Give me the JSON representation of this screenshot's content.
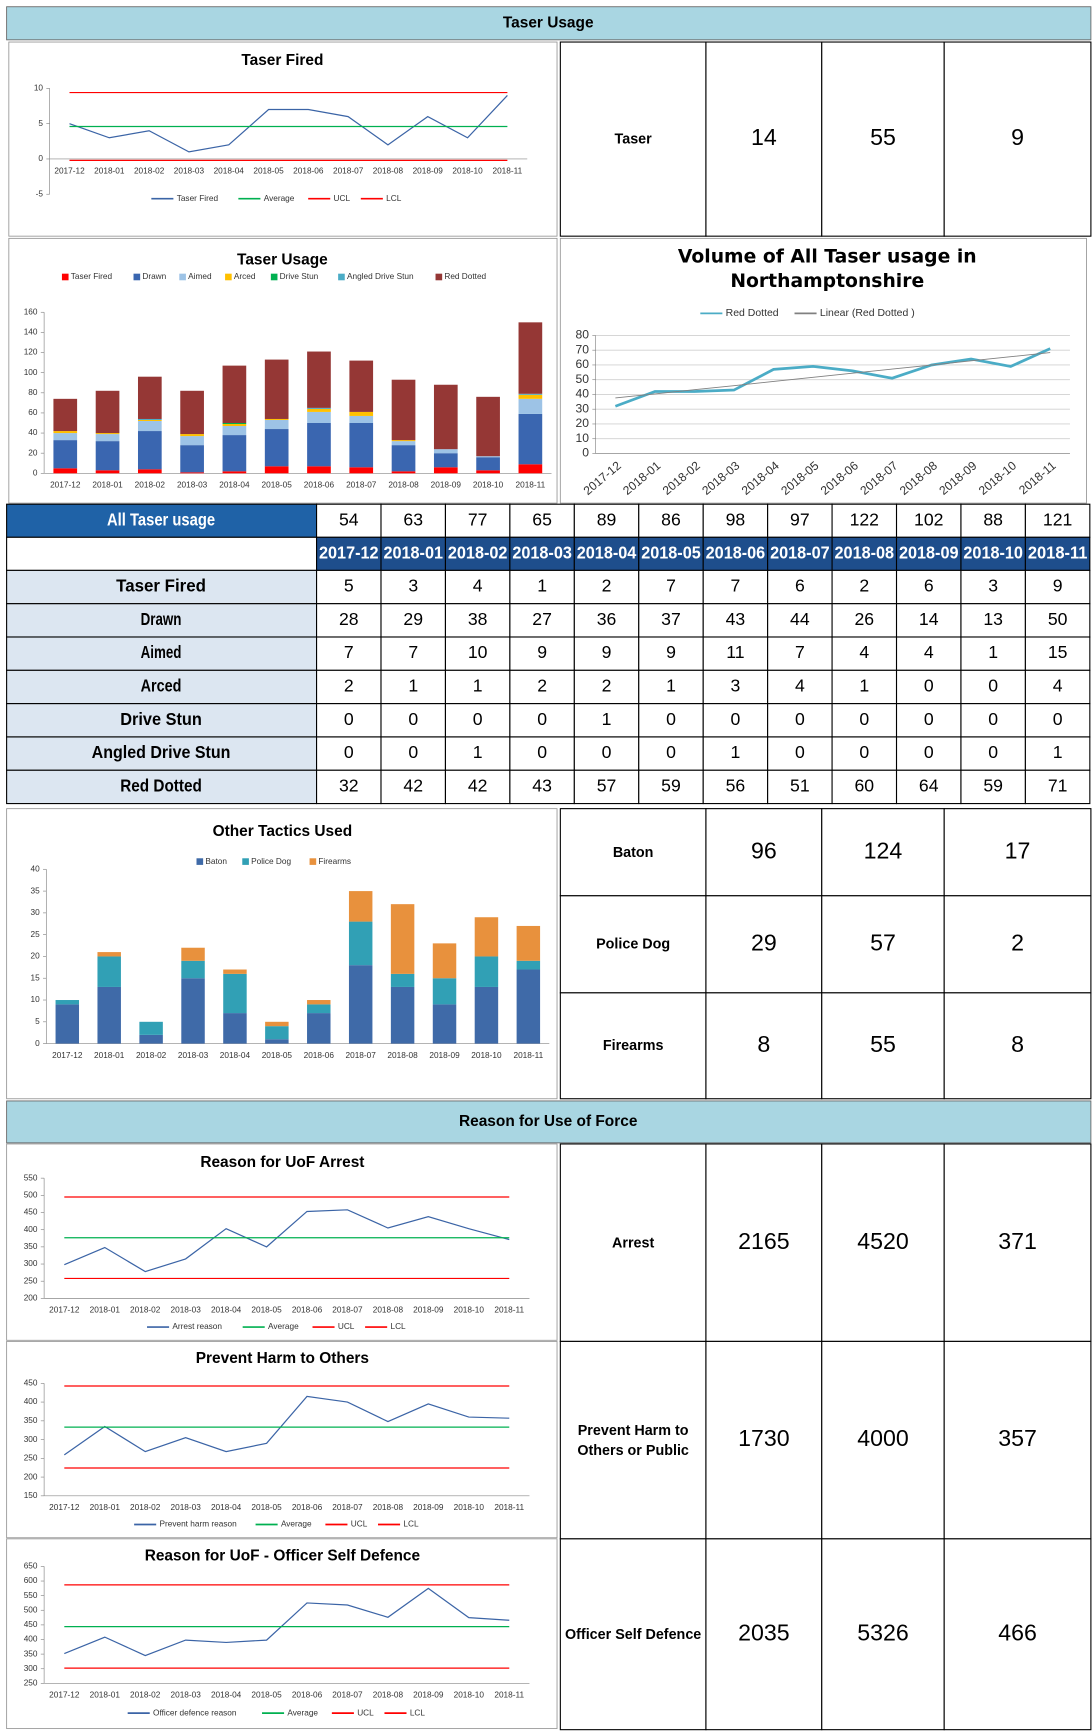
{
  "sections": [
    "Taser Usage",
    "Reason for Use of Force"
  ],
  "chart_data": [
    {
      "type": "line",
      "title": "Taser Fired",
      "categories": [
        "2017-12",
        "2018-01",
        "2018-02",
        "2018-03",
        "2018-04",
        "2018-05",
        "2018-06",
        "2018-07",
        "2018-08",
        "2018-09",
        "2018-10",
        "2018-11"
      ],
      "series": [
        {
          "name": "Taser Fired",
          "color": "#3b64a6",
          "values": [
            5,
            3,
            4,
            1,
            2,
            7,
            7,
            6,
            2,
            6,
            3,
            9
          ]
        },
        {
          "name": "Average",
          "color": "#00b050",
          "values": [
            4.6,
            4.6,
            4.6,
            4.6,
            4.6,
            4.6,
            4.6,
            4.6,
            4.6,
            4.6,
            4.6,
            4.6
          ]
        },
        {
          "name": "UCL",
          "color": "#ff0000",
          "values": [
            9.4,
            9.4,
            9.4,
            9.4,
            9.4,
            9.4,
            9.4,
            9.4,
            9.4,
            9.4,
            9.4,
            9.4
          ]
        },
        {
          "name": "LCL",
          "color": "#ff0000",
          "values": [
            -0.2,
            -0.2,
            -0.2,
            -0.2,
            -0.2,
            -0.2,
            -0.2,
            -0.2,
            -0.2,
            -0.2,
            -0.2,
            -0.2
          ]
        }
      ],
      "ylim": [
        -5,
        10
      ],
      "yticks": [
        -5,
        0,
        5,
        10
      ],
      "legend": "bottom"
    },
    {
      "type": "bar",
      "stacked": true,
      "title": "Taser Usage",
      "categories": [
        "2017-12",
        "2018-01",
        "2018-02",
        "2018-03",
        "2018-04",
        "2018-05",
        "2018-06",
        "2018-07",
        "2018-08",
        "2018-09",
        "2018-10",
        "2018-11"
      ],
      "series": [
        {
          "name": "Taser Fired",
          "color": "#ff0000",
          "values": [
            5,
            3,
            4,
            1,
            2,
            7,
            7,
            6,
            2,
            6,
            3,
            9
          ]
        },
        {
          "name": "Drawn",
          "color": "#3a66b0",
          "values": [
            28,
            29,
            38,
            27,
            36,
            37,
            43,
            44,
            26,
            14,
            13,
            50
          ]
        },
        {
          "name": "Aimed",
          "color": "#9dc3e6",
          "values": [
            7,
            7,
            10,
            9,
            9,
            9,
            11,
            7,
            4,
            4,
            1,
            15
          ]
        },
        {
          "name": "Arced",
          "color": "#ffc000",
          "values": [
            2,
            1,
            1,
            2,
            2,
            1,
            3,
            4,
            1,
            0,
            0,
            4
          ]
        },
        {
          "name": "Drive Stun",
          "color": "#00b050",
          "values": [
            0,
            0,
            0,
            0,
            1,
            0,
            0,
            0,
            0,
            0,
            0,
            0
          ]
        },
        {
          "name": "Angled Drive Stun",
          "color": "#4bacc6",
          "values": [
            0,
            0,
            1,
            0,
            0,
            0,
            1,
            0,
            0,
            0,
            0,
            1
          ]
        },
        {
          "name": "Red Dotted",
          "color": "#953735",
          "values": [
            32,
            42,
            42,
            43,
            57,
            59,
            56,
            51,
            60,
            64,
            59,
            71
          ]
        }
      ],
      "ylim": [
        0,
        160
      ],
      "yticks": [
        0,
        20,
        40,
        60,
        80,
        100,
        120,
        140,
        160
      ],
      "legend": "top"
    },
    {
      "type": "line",
      "title": "Volume of All Taser usage in Northamptonshire",
      "categories": [
        "2017-12",
        "2018-01",
        "2018-02",
        "2018-03",
        "2018-04",
        "2018-05",
        "2018-06",
        "2018-07",
        "2018-08",
        "2018-09",
        "2018-10",
        "2018-11"
      ],
      "series": [
        {
          "name": "Red Dotted",
          "color": "#4bacc6",
          "values": [
            32,
            42,
            42,
            43,
            57,
            59,
            56,
            51,
            60,
            64,
            59,
            71
          ]
        },
        {
          "name": "Linear (Red Dotted )",
          "color": "#808080",
          "values": [
            37.6,
            40.4,
            43.2,
            46.0,
            48.8,
            51.6,
            54.4,
            57.2,
            60.0,
            62.8,
            65.6,
            68.4
          ]
        }
      ],
      "ylim": [
        0,
        80
      ],
      "yticks": [
        0,
        10,
        20,
        30,
        40,
        50,
        60,
        70,
        80
      ],
      "grid": true,
      "legend": "top"
    },
    {
      "type": "bar",
      "stacked": true,
      "title": "Other Tactics Used",
      "categories": [
        "2017-12",
        "2018-01",
        "2018-02",
        "2018-03",
        "2018-04",
        "2018-05",
        "2018-06",
        "2018-07",
        "2018-08",
        "2018-09",
        "2018-10",
        "2018-11"
      ],
      "series": [
        {
          "name": "Baton",
          "color": "#3f6aa8",
          "values": [
            9,
            13,
            2,
            15,
            7,
            1,
            7,
            18,
            13,
            9,
            13,
            17
          ]
        },
        {
          "name": "Police Dog",
          "color": "#31a0b5",
          "values": [
            1,
            7,
            3,
            4,
            9,
            3,
            2,
            10,
            3,
            6,
            7,
            2
          ]
        },
        {
          "name": "Firearms",
          "color": "#e8913d",
          "values": [
            0,
            1,
            0,
            3,
            1,
            1,
            1,
            7,
            16,
            8,
            9,
            8
          ]
        }
      ],
      "ylim": [
        0,
        40
      ],
      "yticks": [
        0,
        5,
        10,
        15,
        20,
        25,
        30,
        35,
        40
      ],
      "legend": "top"
    },
    {
      "type": "line",
      "title": "Reason for UoF Arrest",
      "categories": [
        "2017-12",
        "2018-01",
        "2018-02",
        "2018-03",
        "2018-04",
        "2018-05",
        "2018-06",
        "2018-07",
        "2018-08",
        "2018-09",
        "2018-10",
        "2018-11"
      ],
      "series": [
        {
          "name": "Arrest reason",
          "color": "#3b64a6",
          "values": [
            298,
            348,
            278,
            315,
            403,
            350,
            453,
            458,
            405,
            438,
            403,
            371
          ]
        },
        {
          "name": "Average",
          "color": "#00b050",
          "values": [
            376.7,
            376.7,
            376.7,
            376.7,
            376.7,
            376.7,
            376.7,
            376.7,
            376.7,
            376.7,
            376.7,
            376.7
          ]
        },
        {
          "name": "UCL",
          "color": "#ff0000",
          "values": [
            495,
            495,
            495,
            495,
            495,
            495,
            495,
            495,
            495,
            495,
            495,
            495
          ]
        },
        {
          "name": "LCL",
          "color": "#ff0000",
          "values": [
            258,
            258,
            258,
            258,
            258,
            258,
            258,
            258,
            258,
            258,
            258,
            258
          ]
        }
      ],
      "ylim": [
        200,
        550
      ],
      "yticks": [
        200,
        250,
        300,
        350,
        400,
        450,
        500,
        550
      ],
      "legend": "bottom"
    },
    {
      "type": "line",
      "title": "Prevent Harm to Others",
      "categories": [
        "2017-12",
        "2018-01",
        "2018-02",
        "2018-03",
        "2018-04",
        "2018-05",
        "2018-06",
        "2018-07",
        "2018-08",
        "2018-09",
        "2018-10",
        "2018-11"
      ],
      "series": [
        {
          "name": "Prevent harm reason",
          "color": "#3b64a6",
          "values": [
            259,
            335,
            268,
            305,
            268,
            290,
            415,
            400,
            348,
            395,
            360,
            357
          ]
        },
        {
          "name": "Average",
          "color": "#00b050",
          "values": [
            333.3,
            333.3,
            333.3,
            333.3,
            333.3,
            333.3,
            333.3,
            333.3,
            333.3,
            333.3,
            333.3,
            333.3
          ]
        },
        {
          "name": "UCL",
          "color": "#ff0000",
          "values": [
            443,
            443,
            443,
            443,
            443,
            443,
            443,
            443,
            443,
            443,
            443,
            443
          ]
        },
        {
          "name": "LCL",
          "color": "#ff0000",
          "values": [
            224,
            224,
            224,
            224,
            224,
            224,
            224,
            224,
            224,
            224,
            224,
            224
          ]
        }
      ],
      "ylim": [
        150,
        450
      ],
      "yticks": [
        150,
        200,
        250,
        300,
        350,
        400,
        450
      ],
      "legend": "bottom"
    },
    {
      "type": "line",
      "title": "Reason for UoF - Officer Self Defence",
      "categories": [
        "2017-12",
        "2018-01",
        "2018-02",
        "2018-03",
        "2018-04",
        "2018-05",
        "2018-06",
        "2018-07",
        "2018-08",
        "2018-09",
        "2018-10",
        "2018-11"
      ],
      "series": [
        {
          "name": "Officer defence reason",
          "color": "#3b64a6",
          "values": [
            352,
            408,
            345,
            398,
            390,
            398,
            525,
            518,
            476,
            575,
            475,
            466
          ]
        },
        {
          "name": "Average",
          "color": "#00b050",
          "values": [
            443.8,
            443.8,
            443.8,
            443.8,
            443.8,
            443.8,
            443.8,
            443.8,
            443.8,
            443.8,
            443.8,
            443.8
          ]
        },
        {
          "name": "UCL",
          "color": "#ff0000",
          "values": [
            587,
            587,
            587,
            587,
            587,
            587,
            587,
            587,
            587,
            587,
            587,
            587
          ]
        },
        {
          "name": "LCL",
          "color": "#ff0000",
          "values": [
            302,
            302,
            302,
            302,
            302,
            302,
            302,
            302,
            302,
            302,
            302,
            302
          ]
        }
      ],
      "ylim": [
        250,
        650
      ],
      "yticks": [
        250,
        300,
        350,
        400,
        450,
        500,
        550,
        600,
        650
      ],
      "legend": "bottom"
    }
  ],
  "taser_table": {
    "total_label": "All Taser usage",
    "totals": [
      54,
      63,
      77,
      65,
      89,
      86,
      98,
      97,
      122,
      102,
      88,
      121
    ],
    "columns": [
      "2017-12",
      "2018-01",
      "2018-02",
      "2018-03",
      "2018-04",
      "2018-05",
      "2018-06",
      "2018-07",
      "2018-08",
      "2018-09",
      "2018-10",
      "2018-11"
    ],
    "rows": [
      {
        "label": "Taser Fired",
        "values": [
          5,
          3,
          4,
          1,
          2,
          7,
          7,
          6,
          2,
          6,
          3,
          9
        ]
      },
      {
        "label": "Drawn",
        "values": [
          28,
          29,
          38,
          27,
          36,
          37,
          43,
          44,
          26,
          14,
          13,
          50
        ]
      },
      {
        "label": "Aimed",
        "values": [
          7,
          7,
          10,
          9,
          9,
          9,
          11,
          7,
          4,
          4,
          1,
          15
        ]
      },
      {
        "label": "Arced",
        "values": [
          2,
          1,
          1,
          2,
          2,
          1,
          3,
          4,
          1,
          0,
          0,
          4
        ]
      },
      {
        "label": "Drive Stun",
        "values": [
          0,
          0,
          0,
          0,
          1,
          0,
          0,
          0,
          0,
          0,
          0,
          0
        ]
      },
      {
        "label": "Angled Drive Stun",
        "values": [
          0,
          0,
          1,
          0,
          0,
          0,
          1,
          0,
          0,
          0,
          0,
          1
        ]
      },
      {
        "label": "Red Dotted",
        "values": [
          32,
          42,
          42,
          43,
          57,
          59,
          56,
          51,
          60,
          64,
          59,
          71
        ]
      }
    ]
  },
  "summary": [
    {
      "label": "Taser",
      "values": [
        14,
        55,
        9
      ]
    },
    {
      "label": "Baton",
      "values": [
        96,
        124,
        17
      ]
    },
    {
      "label": "Police Dog",
      "values": [
        29,
        57,
        2
      ]
    },
    {
      "label": "Firearms",
      "values": [
        8,
        55,
        8
      ]
    },
    {
      "label": "Arrest",
      "values": [
        2165,
        4520,
        371
      ]
    },
    {
      "label": "Prevent Harm to Others or Public",
      "values": [
        1730,
        4000,
        357
      ]
    },
    {
      "label": "Officer Self Defence",
      "values": [
        2035,
        5326,
        466
      ]
    }
  ]
}
